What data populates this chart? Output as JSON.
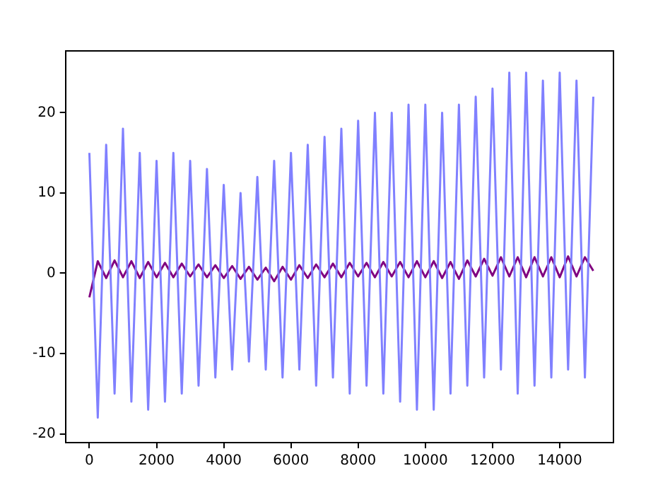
{
  "chart_data": {
    "type": "line",
    "xlim": [
      -711,
      15600
    ],
    "xticks": [
      0,
      2000,
      4000,
      6000,
      8000,
      10000,
      12000,
      14000
    ],
    "ylim": [
      -21.1,
      27.7
    ],
    "yticks": [
      -20,
      -10,
      0,
      10,
      20
    ],
    "grid": false,
    "legend": false,
    "marker": "none",
    "line_style": "solid",
    "series": [
      {
        "color": "#8080ff",
        "x": [
          0,
          250,
          500,
          750,
          1000,
          1250,
          1500,
          1750,
          2000,
          2250,
          2500,
          2750,
          3000,
          3250,
          3500,
          3750,
          4000,
          4250,
          4500,
          4750,
          5000,
          5250,
          5500,
          5750,
          6000,
          6250,
          6500,
          6750,
          7000,
          7250,
          7500,
          7750,
          8000,
          8250,
          8500,
          8750,
          9000,
          9250,
          9500,
          9750,
          10000,
          10250,
          10500,
          10750,
          11000,
          11250,
          11500,
          11750,
          12000,
          12250,
          12500,
          12750,
          13000,
          13250,
          13500,
          13750,
          14000,
          14250,
          14500,
          14750,
          15000
        ],
        "values": [
          15,
          -18,
          16,
          -15,
          18,
          -16,
          15,
          -17,
          14,
          -16,
          15,
          -15,
          14,
          -14,
          13,
          -13,
          11,
          -12,
          10,
          -11,
          12,
          -12,
          14,
          -13,
          15,
          -12,
          16,
          -14,
          17,
          -13,
          18,
          -15,
          19,
          -14,
          20,
          -15,
          20,
          -16,
          21,
          -17,
          21,
          -17,
          20,
          -15,
          21,
          -14,
          22,
          -13,
          23,
          -12,
          25,
          -15,
          25,
          -14,
          24,
          -13,
          25,
          -12,
          24,
          -13,
          22
        ]
      },
      {
        "color": "#800080",
        "x": [
          0,
          250,
          500,
          750,
          1000,
          1250,
          1500,
          1750,
          2000,
          2250,
          2500,
          2750,
          3000,
          3250,
          3500,
          3750,
          4000,
          4250,
          4500,
          4750,
          5000,
          5250,
          5500,
          5750,
          6000,
          6250,
          6500,
          6750,
          7000,
          7250,
          7500,
          7750,
          8000,
          8250,
          8500,
          8750,
          9000,
          9250,
          9500,
          9750,
          10000,
          10250,
          10500,
          10750,
          11000,
          11250,
          11500,
          11750,
          12000,
          12250,
          12500,
          12750,
          13000,
          13250,
          13500,
          13750,
          14000,
          14250,
          14500,
          14750,
          15000
        ],
        "values": [
          -3,
          1.5,
          -0.6,
          1.6,
          -0.5,
          1.5,
          -0.6,
          1.4,
          -0.5,
          1.3,
          -0.5,
          1.2,
          -0.4,
          1.1,
          -0.5,
          1,
          -0.6,
          0.9,
          -0.7,
          0.8,
          -0.8,
          0.7,
          -1,
          0.8,
          -0.8,
          1,
          -0.6,
          1.1,
          -0.5,
          1.2,
          -0.5,
          1.3,
          -0.4,
          1.3,
          -0.5,
          1.4,
          -0.4,
          1.4,
          -0.5,
          1.5,
          -0.5,
          1.5,
          -0.6,
          1.4,
          -0.7,
          1.6,
          -0.4,
          1.8,
          -0.3,
          2,
          -0.4,
          2,
          -0.5,
          2,
          -0.4,
          2,
          -0.5,
          2.1,
          -0.4,
          2,
          0.3
        ]
      }
    ]
  }
}
